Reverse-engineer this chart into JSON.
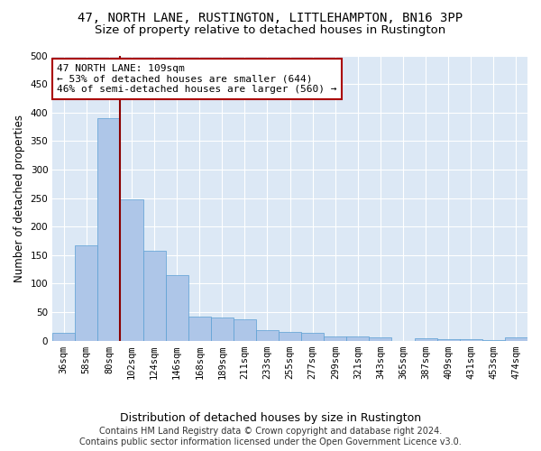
{
  "title": "47, NORTH LANE, RUSTINGTON, LITTLEHAMPTON, BN16 3PP",
  "subtitle": "Size of property relative to detached houses in Rustington",
  "xlabel": "Distribution of detached houses by size in Rustington",
  "ylabel": "Number of detached properties",
  "categories": [
    "36sqm",
    "58sqm",
    "80sqm",
    "102sqm",
    "124sqm",
    "146sqm",
    "168sqm",
    "189sqm",
    "211sqm",
    "233sqm",
    "255sqm",
    "277sqm",
    "299sqm",
    "321sqm",
    "343sqm",
    "365sqm",
    "387sqm",
    "409sqm",
    "431sqm",
    "453sqm",
    "474sqm"
  ],
  "values": [
    13,
    167,
    390,
    248,
    157,
    115,
    42,
    40,
    38,
    18,
    16,
    13,
    8,
    7,
    5,
    0,
    4,
    2,
    2,
    1,
    6
  ],
  "bar_color": "#aec6e8",
  "bar_edge_color": "#5a9fd4",
  "vline_color": "#8b0000",
  "annotation_text": "47 NORTH LANE: 109sqm\n← 53% of detached houses are smaller (644)\n46% of semi-detached houses are larger (560) →",
  "annotation_box_color": "#ffffff",
  "annotation_box_edge_color": "#aa0000",
  "bg_color": "#dce8f5",
  "ylim": [
    0,
    500
  ],
  "yticks": [
    0,
    50,
    100,
    150,
    200,
    250,
    300,
    350,
    400,
    450,
    500
  ],
  "footer_line1": "Contains HM Land Registry data © Crown copyright and database right 2024.",
  "footer_line2": "Contains public sector information licensed under the Open Government Licence v3.0.",
  "title_fontsize": 10,
  "subtitle_fontsize": 9.5,
  "xlabel_fontsize": 9,
  "ylabel_fontsize": 8.5,
  "tick_fontsize": 7.5,
  "footer_fontsize": 7
}
